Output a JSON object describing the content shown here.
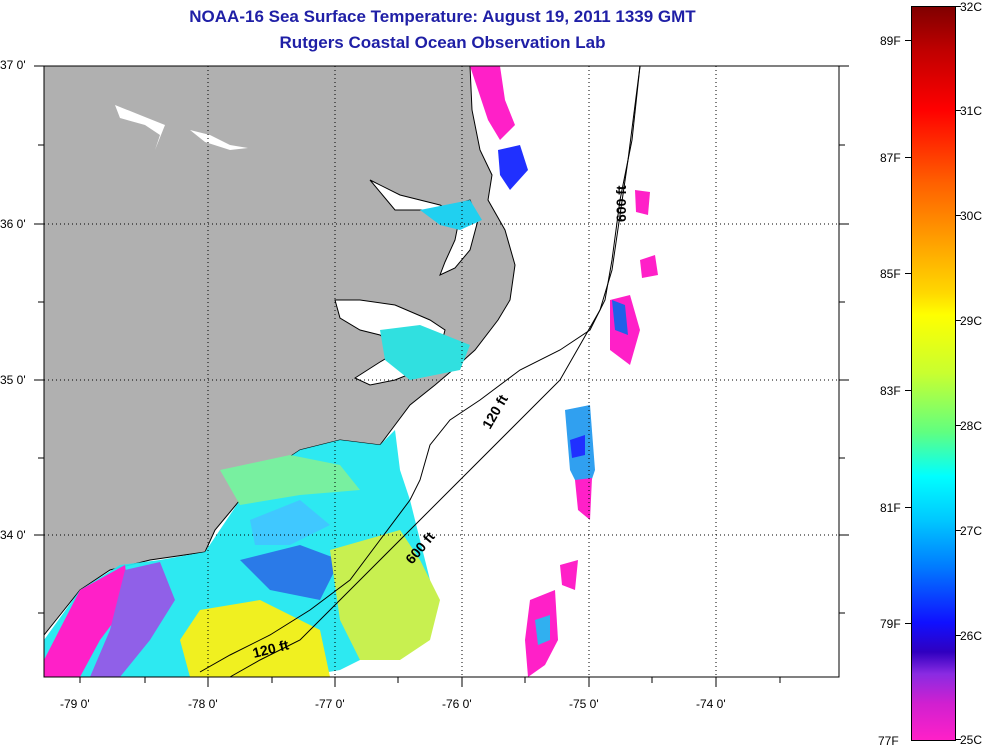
{
  "title": {
    "line1": "NOAA-16 Sea Surface Temperature:  August 19, 2011 1339 GMT",
    "line2": "Rutgers Coastal Ocean Observation Lab"
  },
  "map": {
    "lat_labels": [
      "37 0'",
      "36 0'",
      "35 0'",
      "34 0'"
    ],
    "lon_labels": [
      "-79 0'",
      "-78 0'",
      "-77 0'",
      "-76 0'",
      "-75 0'",
      "-74 0'"
    ],
    "contour_labels": [
      "600 ft",
      "120 ft",
      "600 ft",
      "120 ft"
    ],
    "colors": {
      "land": "#b0b0b0",
      "ocean": "#ffffff",
      "coast": "#000000"
    }
  },
  "colorbar": {
    "celsius_labels": [
      "32C",
      "31C",
      "30C",
      "29C",
      "28C",
      "27C",
      "26C",
      "25C"
    ],
    "fahrenheit_labels": [
      "89F",
      "87F",
      "85F",
      "83F",
      "81F",
      "79F",
      "77F"
    ],
    "range_c": [
      25,
      32
    ]
  }
}
